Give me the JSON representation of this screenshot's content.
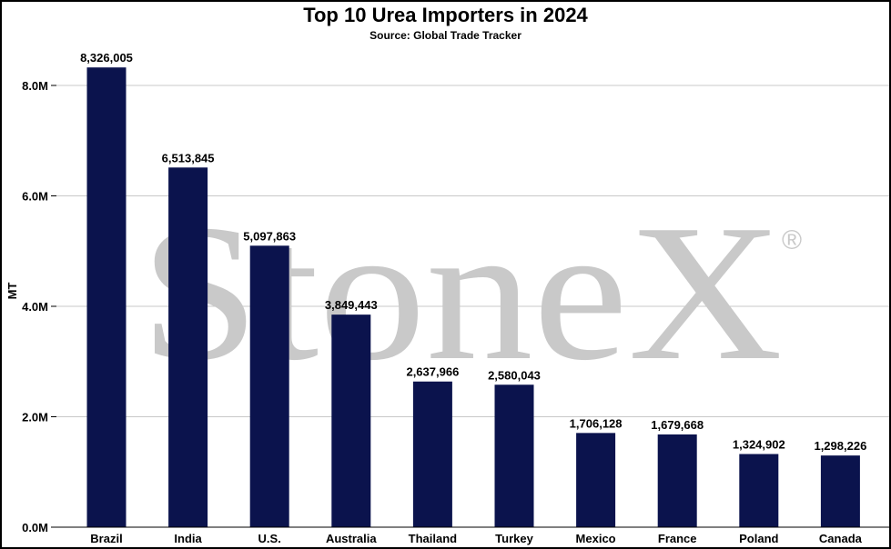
{
  "chart_data": {
    "type": "bar",
    "title": "Top 10 Urea Importers in 2024",
    "subtitle": "Source: Global Trade Tracker",
    "xlabel": "",
    "ylabel": "MT",
    "categories": [
      "Brazil",
      "India",
      "U.S.",
      "Australia",
      "Thailand",
      "Turkey",
      "Mexico",
      "France",
      "Poland",
      "Canada"
    ],
    "values": [
      8326005,
      6513845,
      5097863,
      3849443,
      2637966,
      2580043,
      1706128,
      1679668,
      1324902,
      1298226
    ],
    "data_labels": [
      "8,326,005",
      "6,513,845",
      "5,097,863",
      "3,849,443",
      "2,637,966",
      "2,580,043",
      "1,706,128",
      "1,679,668",
      "1,324,902",
      "1,298,226"
    ],
    "ylim": [
      0,
      8000000
    ],
    "yticks": [
      0,
      2000000,
      4000000,
      6000000,
      8000000
    ],
    "ytick_labels": [
      "0.0M",
      "2.0M",
      "4.0M",
      "6.0M",
      "8.0M"
    ],
    "grid": true,
    "bar_color": "#0b134d",
    "gridline_color": "#c8c8c8"
  },
  "watermark": {
    "text": "StoneX",
    "mark": "®",
    "color": "#c9c9c9"
  }
}
